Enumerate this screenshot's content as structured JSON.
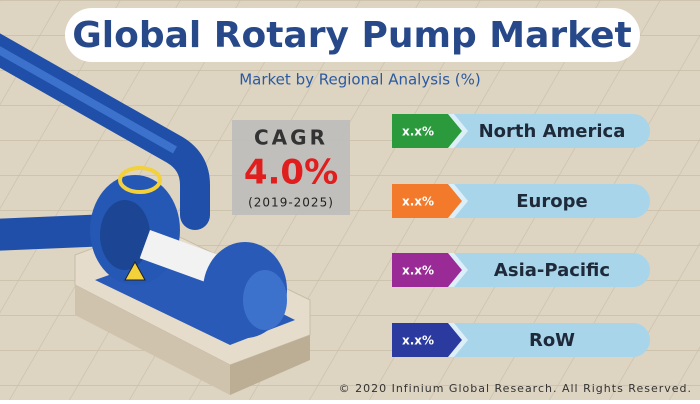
{
  "header": {
    "title": "Global Rotary Pump Market",
    "subtitle": "Market by Regional Analysis (%)"
  },
  "cagr": {
    "label": "CAGR",
    "value": "4.0%",
    "period": "(2019-2025)"
  },
  "regions": [
    {
      "share": "x.x%",
      "name": "North America"
    },
    {
      "share": "x.x%",
      "name": "Europe"
    },
    {
      "share": "x.x%",
      "name": "Asia-Pacific"
    },
    {
      "share": "x.x%",
      "name": "RoW"
    }
  ],
  "footer": {
    "copyright": "© 2020 Infinium Global Research. All Rights Reserved."
  }
}
